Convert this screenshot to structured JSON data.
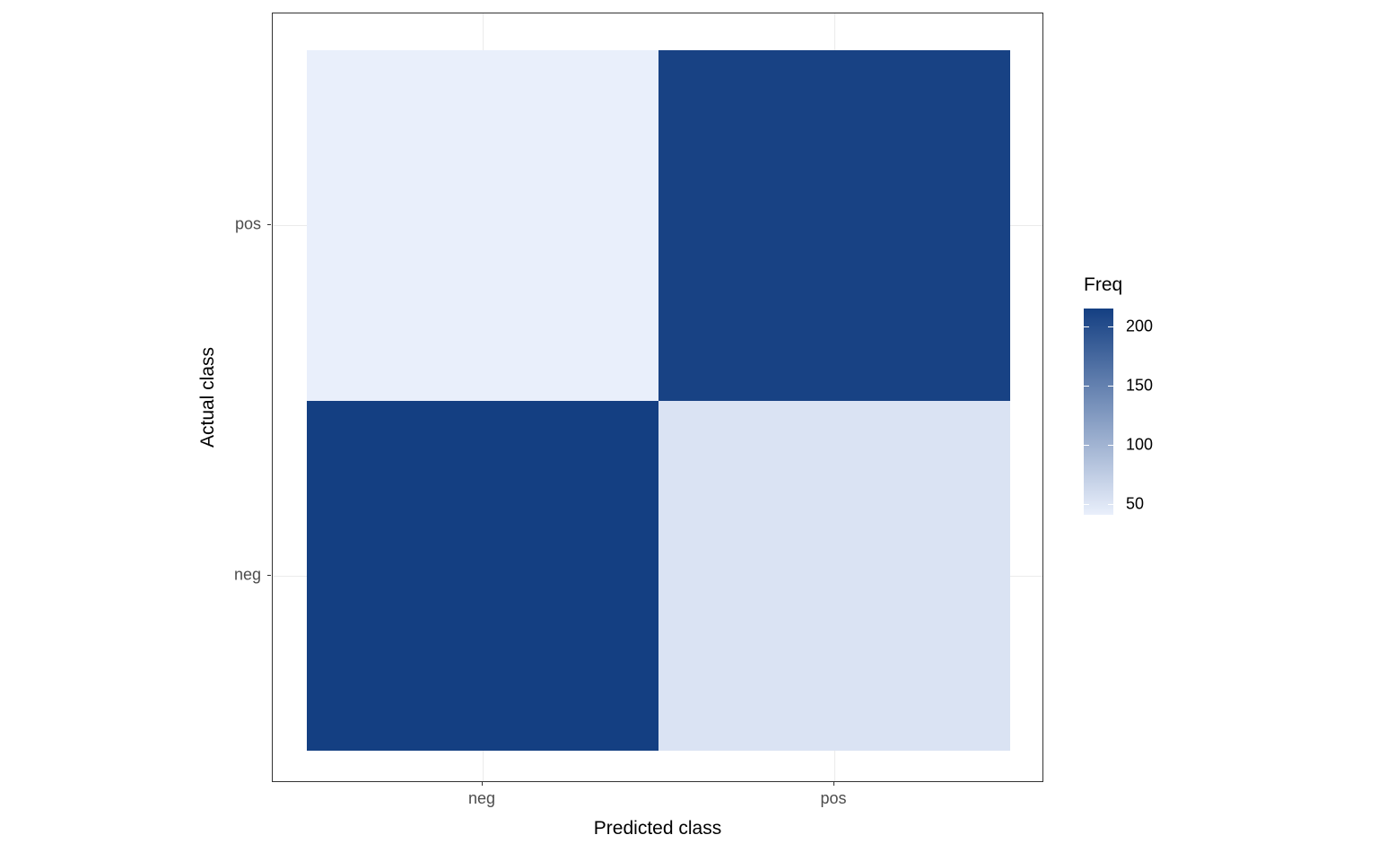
{
  "chart_data": {
    "type": "heatmap",
    "title": "",
    "xlabel": "Predicted class",
    "ylabel": "Actual class",
    "x_categories": [
      "neg",
      "pos"
    ],
    "y_categories": [
      "neg",
      "pos"
    ],
    "cells": [
      {
        "predicted": "neg",
        "actual": "neg",
        "freq": 215
      },
      {
        "predicted": "pos",
        "actual": "neg",
        "freq": 52
      },
      {
        "predicted": "neg",
        "actual": "pos",
        "freq": 40
      },
      {
        "predicted": "pos",
        "actual": "pos",
        "freq": 212
      }
    ],
    "legend": {
      "title": "Freq",
      "tick_labels": [
        "200",
        "150",
        "100",
        "50"
      ],
      "tick_values": [
        200,
        150,
        100,
        50
      ],
      "scale_min": 40,
      "scale_max": 215,
      "low_color": "#e9effb",
      "high_color": "#143f82",
      "position": "right"
    },
    "grid": true,
    "panel_border_color": "#333333",
    "gridline_color": "#ebebeb"
  }
}
